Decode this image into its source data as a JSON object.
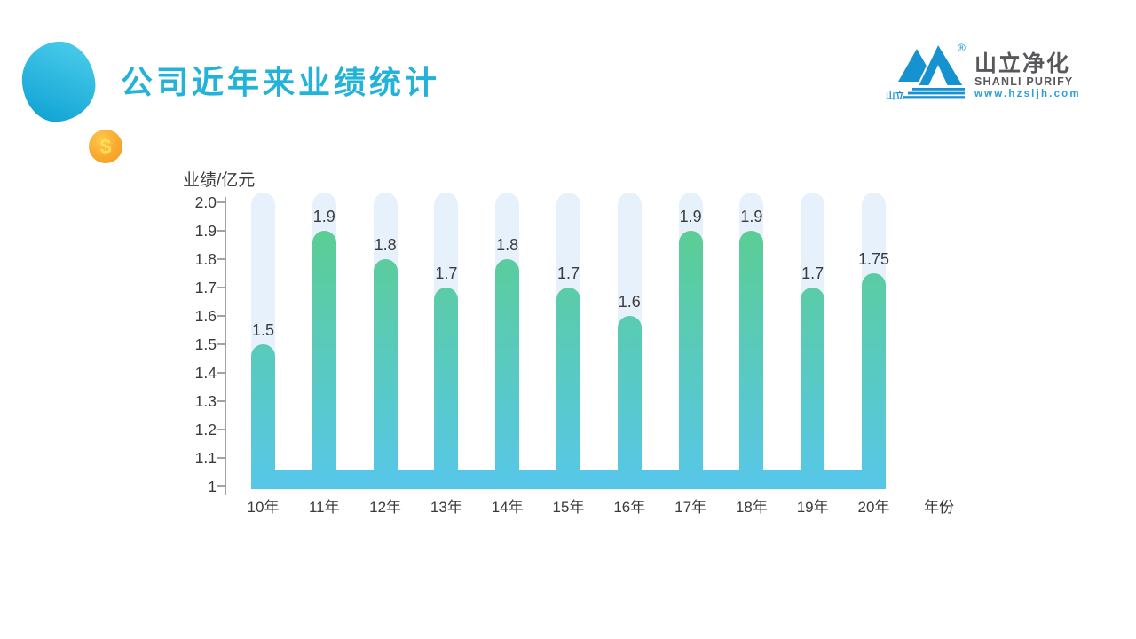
{
  "slide": {
    "title": "公司近年来业绩统计"
  },
  "logo": {
    "mark_text": "山立",
    "reg_mark": "®",
    "name_cn": "山立净化",
    "name_en": "SHANLI PURIFY",
    "website": "www.hzsljh.com",
    "brand_blue": "#1792d0"
  },
  "decorations": {
    "coin_symbol": "$"
  },
  "chart_data": {
    "type": "bar",
    "title": "公司近年来业绩统计",
    "ylabel": "业绩/亿元",
    "xlabel": "年份",
    "categories": [
      "10年",
      "11年",
      "12年",
      "13年",
      "14年",
      "15年",
      "16年",
      "17年",
      "18年",
      "19年",
      "20年"
    ],
    "values": [
      1.5,
      1.9,
      1.8,
      1.7,
      1.8,
      1.7,
      1.6,
      1.9,
      1.9,
      1.7,
      1.75
    ],
    "bar_labels": [
      "1.5",
      "1.9",
      "1.8",
      "1.7",
      "1.8",
      "1.7",
      "1.6",
      "1.9",
      "1.9",
      "1.7",
      "1.75"
    ],
    "ytick_values": [
      2.0,
      1.9,
      1.8,
      1.7,
      1.6,
      1.5,
      1.4,
      1.3,
      1.2,
      1.1,
      1.0
    ],
    "ytick_labels": [
      "2.0",
      "1.9",
      "1.8",
      "1.7",
      "1.6",
      "1.5",
      "1.4",
      "1.3",
      "1.2",
      "1.1",
      "1"
    ],
    "ylim": [
      1.0,
      2.0
    ],
    "grid": false,
    "legend": false,
    "colors": {
      "bar_top": "#5bcd94",
      "bar_bottom": "#57c7e9",
      "pill_background": "#e7f1fb",
      "axis": "#a3a3a3",
      "label_text": "#3b3b3b",
      "title_accent": "#24b3d8"
    }
  }
}
